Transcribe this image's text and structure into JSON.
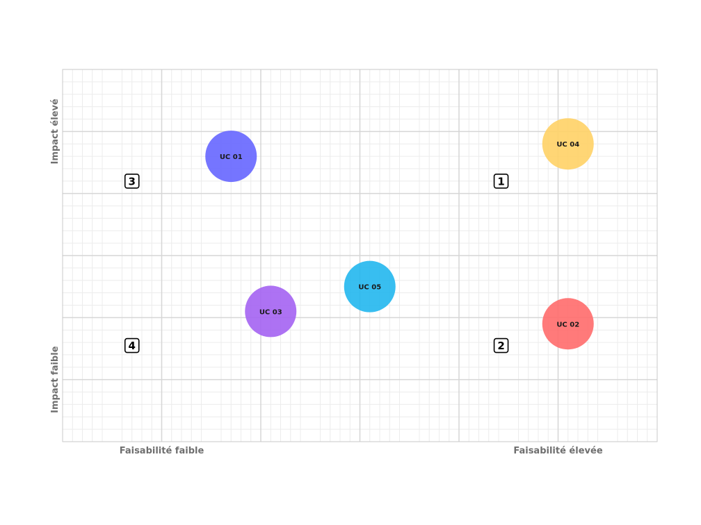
{
  "chart_data": {
    "type": "scatter",
    "xlim": [
      0,
      12
    ],
    "ylim": [
      0,
      6
    ],
    "grid": true,
    "x_tick_labels": [
      {
        "x": 2,
        "label": "Faisabilité faible"
      },
      {
        "x": 10,
        "label": "Faisabilité élevée"
      }
    ],
    "y_tick_labels": [
      {
        "y": 5,
        "label": "Impact élevé"
      },
      {
        "y": 1,
        "label": "Impact faible"
      }
    ],
    "quadrant_dividers": {
      "x": 6,
      "y": 3
    },
    "quadrant_markers": [
      {
        "label": "1",
        "x": 8.85,
        "y": 4.2
      },
      {
        "label": "2",
        "x": 8.85,
        "y": 1.55
      },
      {
        "label": "3",
        "x": 1.4,
        "y": 4.2
      },
      {
        "label": "4",
        "x": 1.4,
        "y": 1.55
      }
    ],
    "points": [
      {
        "label": "UC 01",
        "x": 3.4,
        "y": 4.6,
        "color": "#6666ff"
      },
      {
        "label": "UC 02",
        "x": 10.2,
        "y": 1.9,
        "color": "#ff6b6b"
      },
      {
        "label": "UC 03",
        "x": 4.2,
        "y": 2.1,
        "color": "#a463f2"
      },
      {
        "label": "UC 04",
        "x": 10.2,
        "y": 4.8,
        "color": "#ffd166"
      },
      {
        "label": "UC 05",
        "x": 6.2,
        "y": 2.5,
        "color": "#22b7ee"
      }
    ]
  }
}
